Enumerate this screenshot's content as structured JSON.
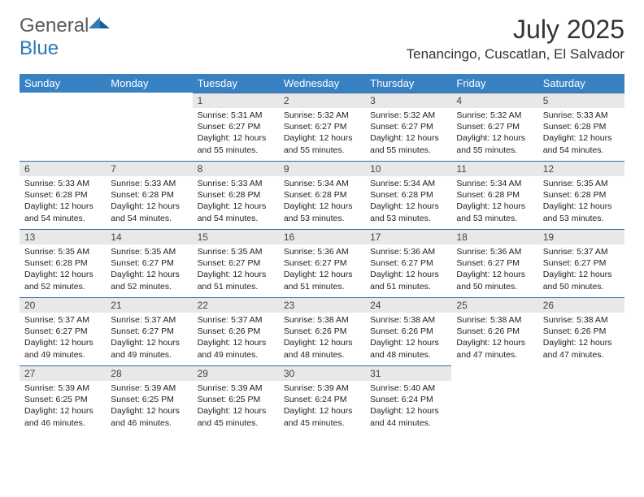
{
  "logo": {
    "general": "General",
    "blue": "Blue"
  },
  "header": {
    "title": "July 2025",
    "location": "Tenancingo, Cuscatlan, El Salvador"
  },
  "colors": {
    "header_bg": "#3882c4",
    "header_text": "#ffffff",
    "daynum_bg": "#e8e8e8",
    "daynum_border": "#3a6a9a",
    "brand_gray": "#5a5a5a",
    "brand_blue": "#2a7ab8"
  },
  "weekdays": [
    "Sunday",
    "Monday",
    "Tuesday",
    "Wednesday",
    "Thursday",
    "Friday",
    "Saturday"
  ],
  "weeks": [
    [
      {
        "empty": true
      },
      {
        "empty": true
      },
      {
        "day": "1",
        "sunrise": "Sunrise: 5:31 AM",
        "sunset": "Sunset: 6:27 PM",
        "daylight1": "Daylight: 12 hours",
        "daylight2": "and 55 minutes."
      },
      {
        "day": "2",
        "sunrise": "Sunrise: 5:32 AM",
        "sunset": "Sunset: 6:27 PM",
        "daylight1": "Daylight: 12 hours",
        "daylight2": "and 55 minutes."
      },
      {
        "day": "3",
        "sunrise": "Sunrise: 5:32 AM",
        "sunset": "Sunset: 6:27 PM",
        "daylight1": "Daylight: 12 hours",
        "daylight2": "and 55 minutes."
      },
      {
        "day": "4",
        "sunrise": "Sunrise: 5:32 AM",
        "sunset": "Sunset: 6:27 PM",
        "daylight1": "Daylight: 12 hours",
        "daylight2": "and 55 minutes."
      },
      {
        "day": "5",
        "sunrise": "Sunrise: 5:33 AM",
        "sunset": "Sunset: 6:28 PM",
        "daylight1": "Daylight: 12 hours",
        "daylight2": "and 54 minutes."
      }
    ],
    [
      {
        "day": "6",
        "sunrise": "Sunrise: 5:33 AM",
        "sunset": "Sunset: 6:28 PM",
        "daylight1": "Daylight: 12 hours",
        "daylight2": "and 54 minutes."
      },
      {
        "day": "7",
        "sunrise": "Sunrise: 5:33 AM",
        "sunset": "Sunset: 6:28 PM",
        "daylight1": "Daylight: 12 hours",
        "daylight2": "and 54 minutes."
      },
      {
        "day": "8",
        "sunrise": "Sunrise: 5:33 AM",
        "sunset": "Sunset: 6:28 PM",
        "daylight1": "Daylight: 12 hours",
        "daylight2": "and 54 minutes."
      },
      {
        "day": "9",
        "sunrise": "Sunrise: 5:34 AM",
        "sunset": "Sunset: 6:28 PM",
        "daylight1": "Daylight: 12 hours",
        "daylight2": "and 53 minutes."
      },
      {
        "day": "10",
        "sunrise": "Sunrise: 5:34 AM",
        "sunset": "Sunset: 6:28 PM",
        "daylight1": "Daylight: 12 hours",
        "daylight2": "and 53 minutes."
      },
      {
        "day": "11",
        "sunrise": "Sunrise: 5:34 AM",
        "sunset": "Sunset: 6:28 PM",
        "daylight1": "Daylight: 12 hours",
        "daylight2": "and 53 minutes."
      },
      {
        "day": "12",
        "sunrise": "Sunrise: 5:35 AM",
        "sunset": "Sunset: 6:28 PM",
        "daylight1": "Daylight: 12 hours",
        "daylight2": "and 53 minutes."
      }
    ],
    [
      {
        "day": "13",
        "sunrise": "Sunrise: 5:35 AM",
        "sunset": "Sunset: 6:28 PM",
        "daylight1": "Daylight: 12 hours",
        "daylight2": "and 52 minutes."
      },
      {
        "day": "14",
        "sunrise": "Sunrise: 5:35 AM",
        "sunset": "Sunset: 6:27 PM",
        "daylight1": "Daylight: 12 hours",
        "daylight2": "and 52 minutes."
      },
      {
        "day": "15",
        "sunrise": "Sunrise: 5:35 AM",
        "sunset": "Sunset: 6:27 PM",
        "daylight1": "Daylight: 12 hours",
        "daylight2": "and 51 minutes."
      },
      {
        "day": "16",
        "sunrise": "Sunrise: 5:36 AM",
        "sunset": "Sunset: 6:27 PM",
        "daylight1": "Daylight: 12 hours",
        "daylight2": "and 51 minutes."
      },
      {
        "day": "17",
        "sunrise": "Sunrise: 5:36 AM",
        "sunset": "Sunset: 6:27 PM",
        "daylight1": "Daylight: 12 hours",
        "daylight2": "and 51 minutes."
      },
      {
        "day": "18",
        "sunrise": "Sunrise: 5:36 AM",
        "sunset": "Sunset: 6:27 PM",
        "daylight1": "Daylight: 12 hours",
        "daylight2": "and 50 minutes."
      },
      {
        "day": "19",
        "sunrise": "Sunrise: 5:37 AM",
        "sunset": "Sunset: 6:27 PM",
        "daylight1": "Daylight: 12 hours",
        "daylight2": "and 50 minutes."
      }
    ],
    [
      {
        "day": "20",
        "sunrise": "Sunrise: 5:37 AM",
        "sunset": "Sunset: 6:27 PM",
        "daylight1": "Daylight: 12 hours",
        "daylight2": "and 49 minutes."
      },
      {
        "day": "21",
        "sunrise": "Sunrise: 5:37 AM",
        "sunset": "Sunset: 6:27 PM",
        "daylight1": "Daylight: 12 hours",
        "daylight2": "and 49 minutes."
      },
      {
        "day": "22",
        "sunrise": "Sunrise: 5:37 AM",
        "sunset": "Sunset: 6:26 PM",
        "daylight1": "Daylight: 12 hours",
        "daylight2": "and 49 minutes."
      },
      {
        "day": "23",
        "sunrise": "Sunrise: 5:38 AM",
        "sunset": "Sunset: 6:26 PM",
        "daylight1": "Daylight: 12 hours",
        "daylight2": "and 48 minutes."
      },
      {
        "day": "24",
        "sunrise": "Sunrise: 5:38 AM",
        "sunset": "Sunset: 6:26 PM",
        "daylight1": "Daylight: 12 hours",
        "daylight2": "and 48 minutes."
      },
      {
        "day": "25",
        "sunrise": "Sunrise: 5:38 AM",
        "sunset": "Sunset: 6:26 PM",
        "daylight1": "Daylight: 12 hours",
        "daylight2": "and 47 minutes."
      },
      {
        "day": "26",
        "sunrise": "Sunrise: 5:38 AM",
        "sunset": "Sunset: 6:26 PM",
        "daylight1": "Daylight: 12 hours",
        "daylight2": "and 47 minutes."
      }
    ],
    [
      {
        "day": "27",
        "sunrise": "Sunrise: 5:39 AM",
        "sunset": "Sunset: 6:25 PM",
        "daylight1": "Daylight: 12 hours",
        "daylight2": "and 46 minutes."
      },
      {
        "day": "28",
        "sunrise": "Sunrise: 5:39 AM",
        "sunset": "Sunset: 6:25 PM",
        "daylight1": "Daylight: 12 hours",
        "daylight2": "and 46 minutes."
      },
      {
        "day": "29",
        "sunrise": "Sunrise: 5:39 AM",
        "sunset": "Sunset: 6:25 PM",
        "daylight1": "Daylight: 12 hours",
        "daylight2": "and 45 minutes."
      },
      {
        "day": "30",
        "sunrise": "Sunrise: 5:39 AM",
        "sunset": "Sunset: 6:24 PM",
        "daylight1": "Daylight: 12 hours",
        "daylight2": "and 45 minutes."
      },
      {
        "day": "31",
        "sunrise": "Sunrise: 5:40 AM",
        "sunset": "Sunset: 6:24 PM",
        "daylight1": "Daylight: 12 hours",
        "daylight2": "and 44 minutes."
      },
      {
        "empty": true
      },
      {
        "empty": true
      }
    ]
  ]
}
